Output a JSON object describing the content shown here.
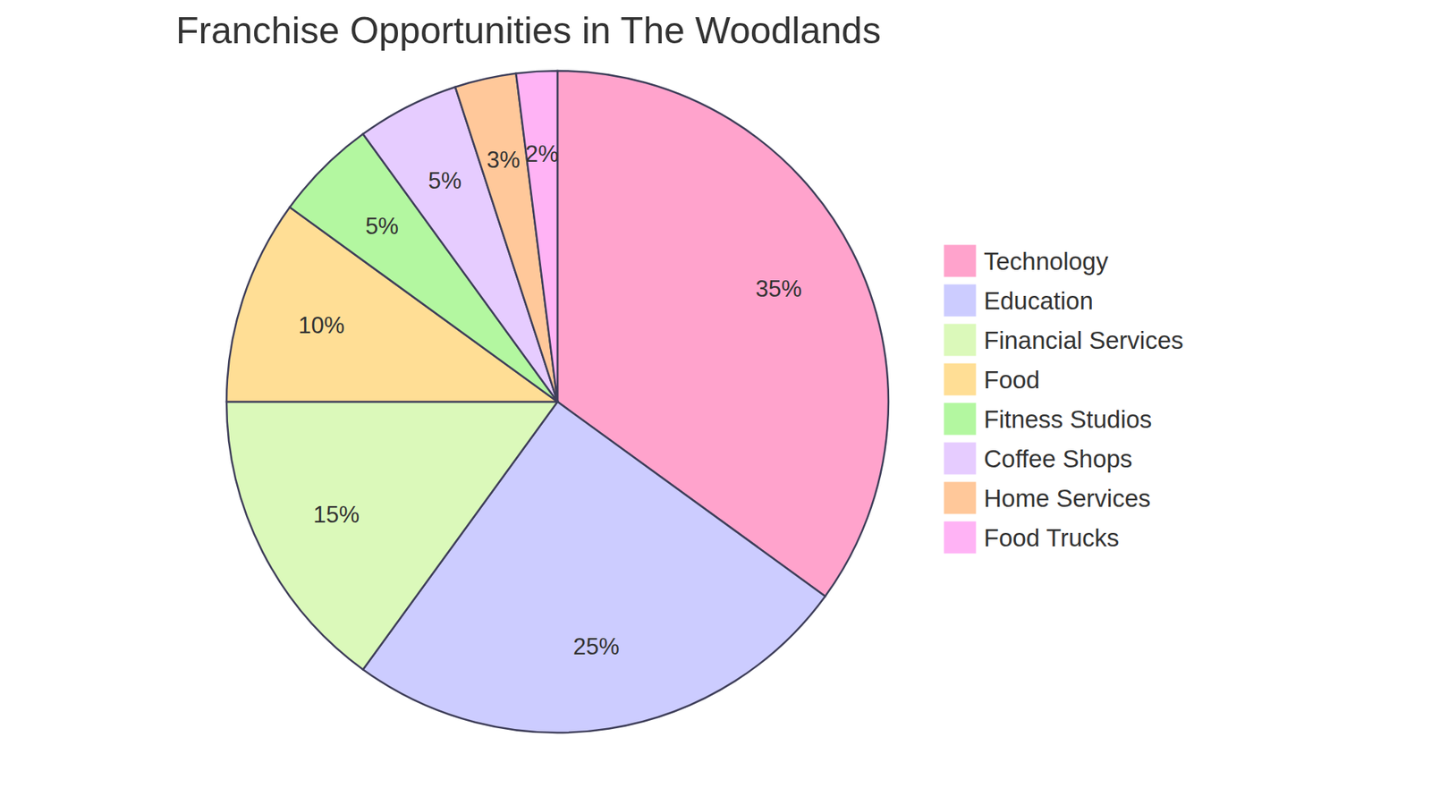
{
  "chart_data": {
    "type": "pie",
    "title": "Franchise Opportunities in The Woodlands",
    "categories": [
      "Technology",
      "Education",
      "Financial Services",
      "Food",
      "Fitness Studios",
      "Coffee Shops",
      "Home Services",
      "Food Trucks"
    ],
    "values": [
      35,
      25,
      15,
      10,
      5,
      5,
      3,
      2
    ],
    "value_labels": [
      "35%",
      "25%",
      "15%",
      "10%",
      "5%",
      "5%",
      "3%",
      "2%"
    ],
    "colors": [
      "#ffa3cc",
      "#ccccff",
      "#dbf9ba",
      "#ffde95",
      "#b3f7a0",
      "#e6ccff",
      "#ffc89a",
      "#ffb3f5"
    ],
    "data_labels": true,
    "legend": "right"
  }
}
